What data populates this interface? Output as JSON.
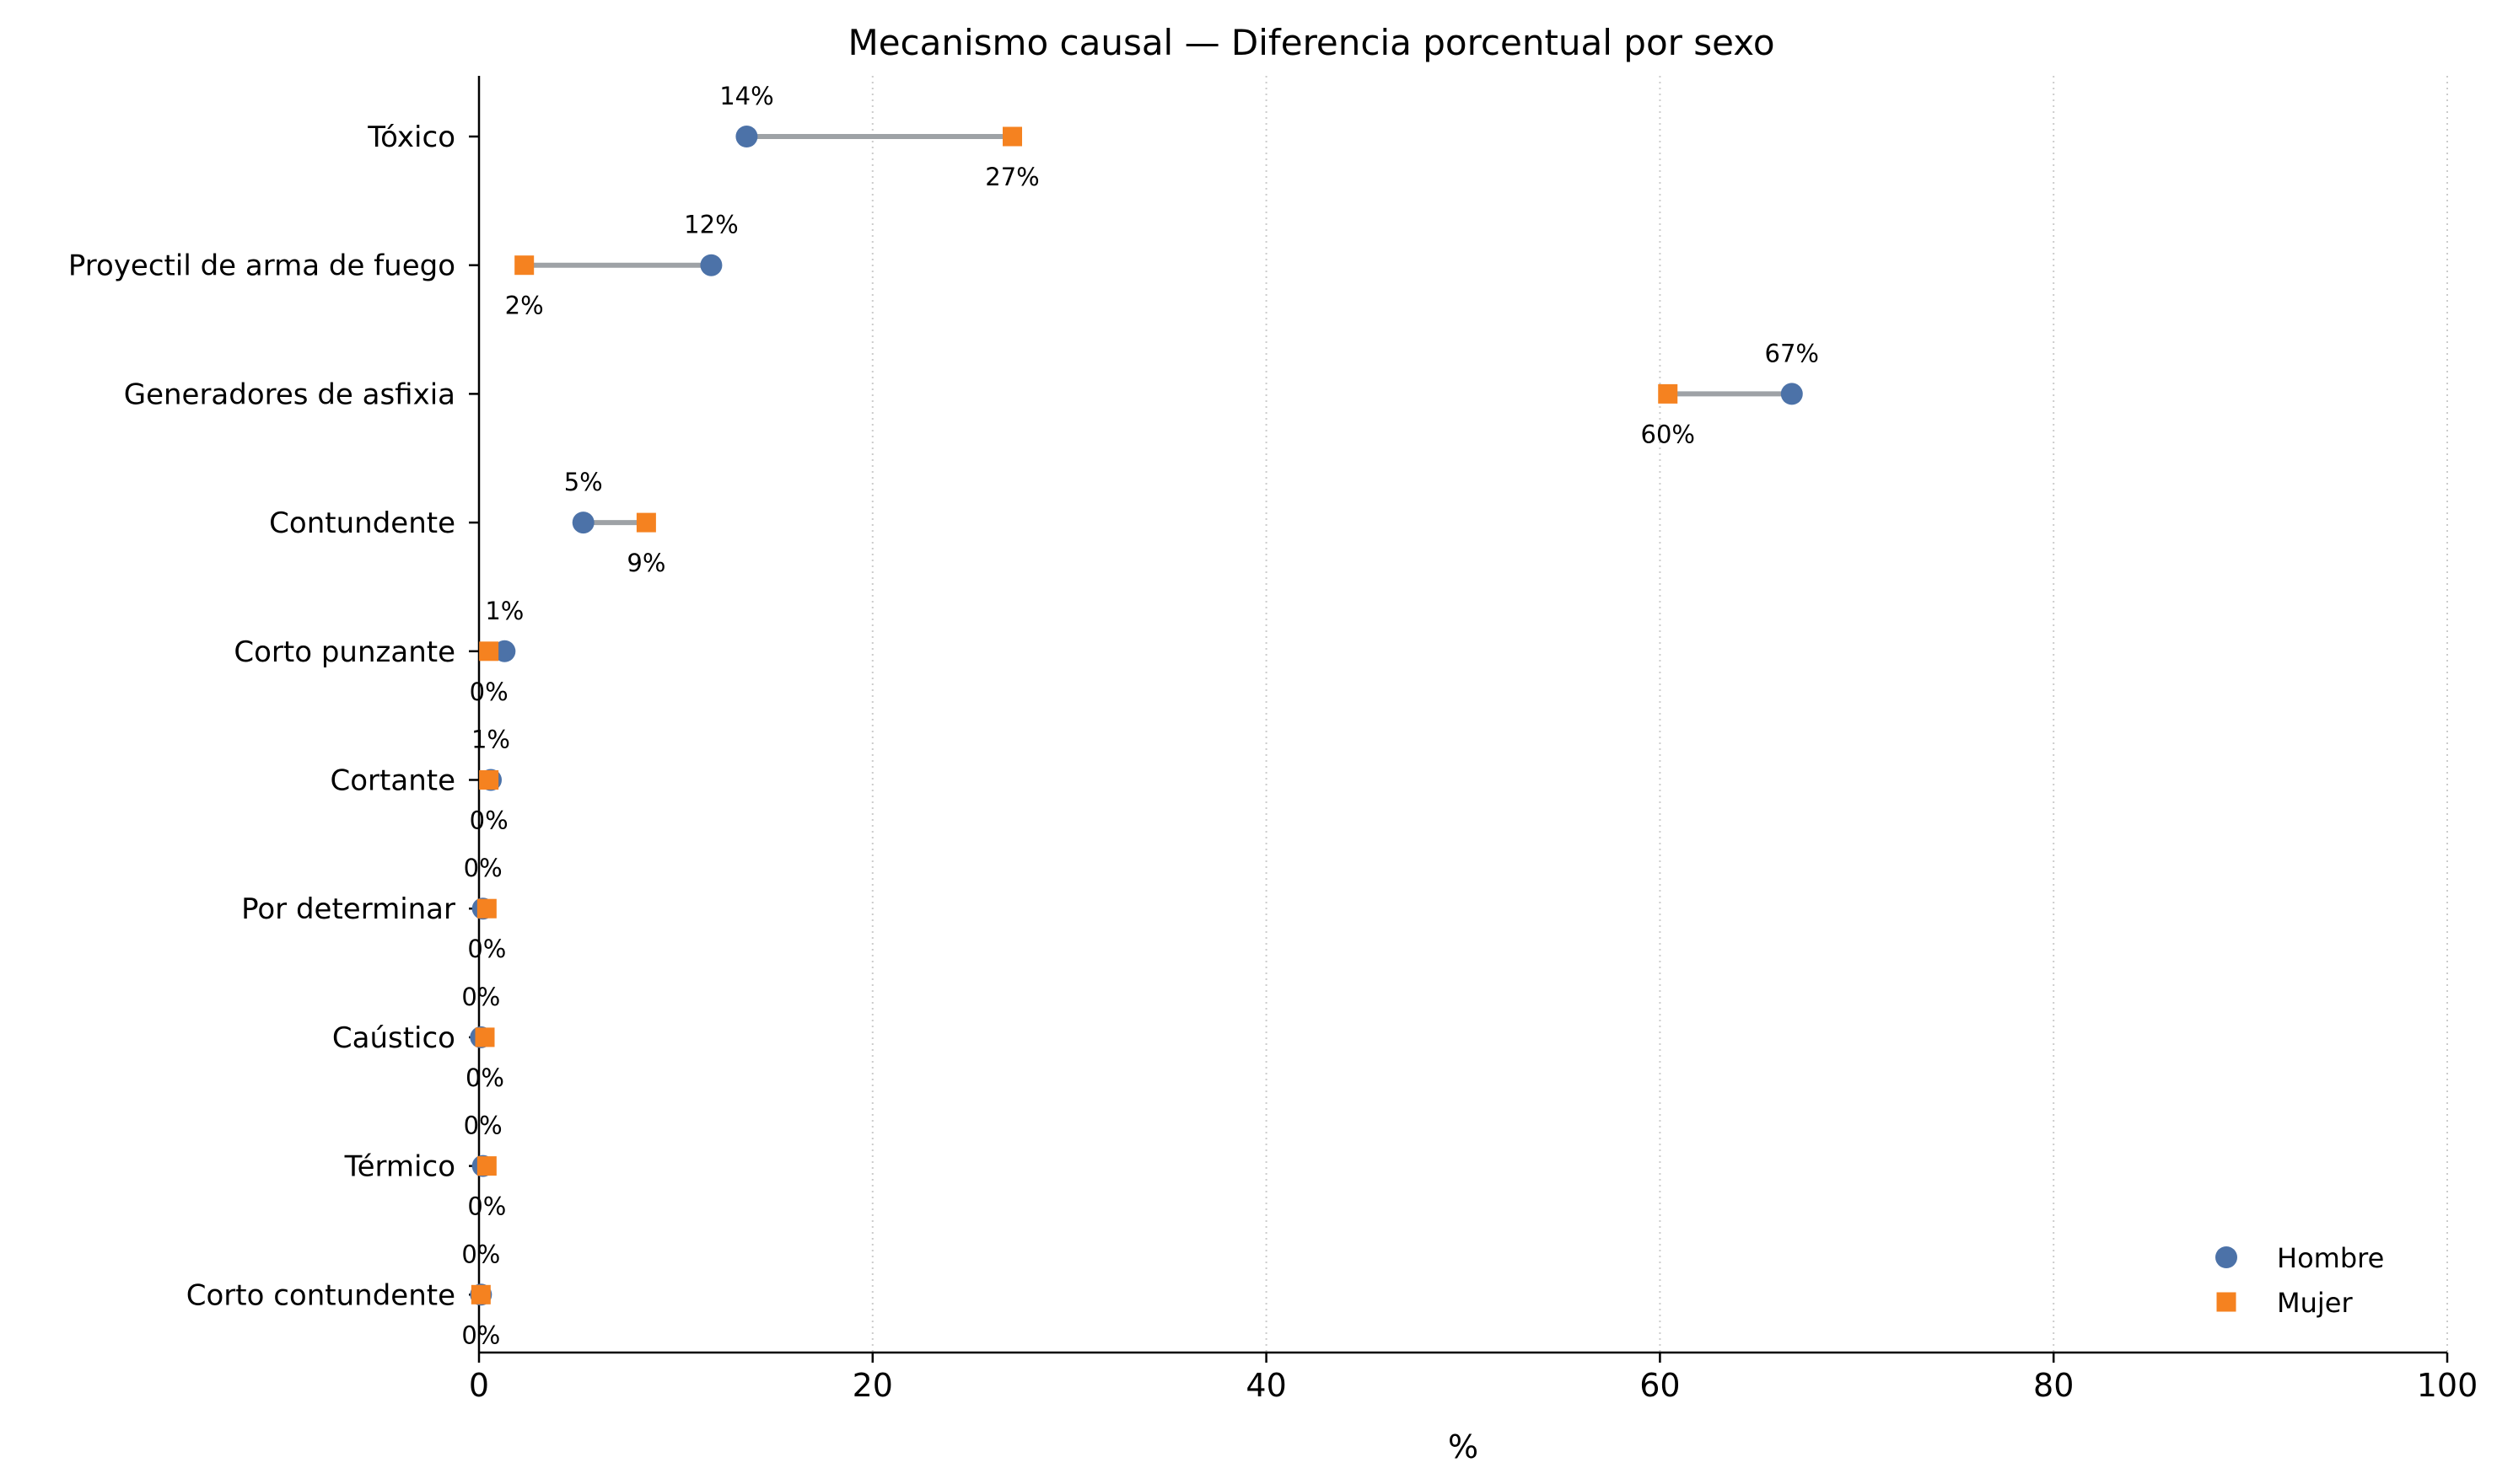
{
  "chart_data": {
    "type": "dumbbell",
    "title": "Mecanismo causal — Diferencia porcentual por sexo",
    "xlabel": "%",
    "ylabel": "",
    "xlim": [
      0,
      100
    ],
    "xticks": [
      0,
      20,
      40,
      60,
      80,
      100
    ],
    "grid": "x, dotted",
    "legend_position": "lower-right",
    "categories": [
      "Tóxico",
      "Proyectil de arma de fuego",
      "Generadores de asfixia",
      "Contundente",
      "Corto punzante",
      "Cortante",
      "Por determinar",
      "Caústico",
      "Térmico",
      "Corto contundente"
    ],
    "series": [
      {
        "name": "Hombre",
        "marker": "circle",
        "color": "#4c72a8",
        "values": [
          13.6,
          11.8,
          66.7,
          5.3,
          1.3,
          0.6,
          0.2,
          0.1,
          0.2,
          0.1
        ],
        "labels": [
          "14%",
          "12%",
          "67%",
          "5%",
          "1%",
          "1%",
          "0%",
          "0%",
          "0%",
          "0%"
        ]
      },
      {
        "name": "Mujer",
        "marker": "square",
        "color": "#f58220",
        "values": [
          27.1,
          2.3,
          60.4,
          8.5,
          0.5,
          0.5,
          0.4,
          0.3,
          0.4,
          0.1
        ],
        "labels": [
          "27%",
          "2%",
          "60%",
          "9%",
          "0%",
          "0%",
          "0%",
          "0%",
          "0%",
          "0%"
        ]
      }
    ],
    "connector_color": "#9ea2a6"
  }
}
